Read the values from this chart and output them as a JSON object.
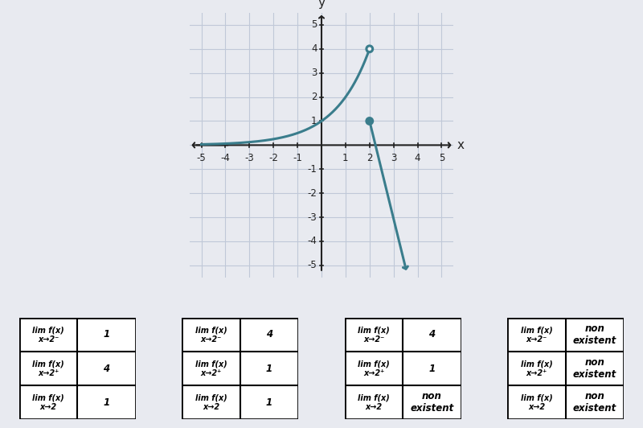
{
  "bg_color": "#e8eaf0",
  "graph_bg": "#f0f2f5",
  "curve_color": "#3a7d8c",
  "grid_color": "#c0c8d8",
  "axis_color": "#222222",
  "xlim": [
    -5.5,
    5.5
  ],
  "ylim": [
    -5.5,
    5.5
  ],
  "xticks": [
    -5,
    -4,
    -3,
    -2,
    -1,
    0,
    1,
    2,
    3,
    4,
    5
  ],
  "yticks": [
    -5,
    -4,
    -3,
    -2,
    -1,
    0,
    1,
    2,
    3,
    4,
    5
  ],
  "open_circle": [
    2,
    4
  ],
  "closed_circle": [
    2,
    1
  ],
  "tables": [
    {
      "rows": [
        [
          "lim f(x)\nx→2⁻",
          "1"
        ],
        [
          "lim f(x)\nx→2⁺",
          "4"
        ],
        [
          "lim f(x)\nx→2",
          "1"
        ]
      ]
    },
    {
      "rows": [
        [
          "lim f(x)\nx→2⁻",
          "4"
        ],
        [
          "lim f(x)\nx→2⁺",
          "1"
        ],
        [
          "lim f(x)\nx→2",
          "1"
        ]
      ]
    },
    {
      "rows": [
        [
          "lim f(x)\nx→2⁻",
          "4"
        ],
        [
          "lim f(x)\nx→2⁺",
          "1"
        ],
        [
          "lim f(x)\nx→2",
          "non\nexistent"
        ]
      ]
    },
    {
      "rows": [
        [
          "lim f(x)\nx→2⁻",
          "non\nexistent"
        ],
        [
          "lim f(x)\nx→2⁺",
          "non\nexistent"
        ],
        [
          "lim f(x)\nx→2",
          "non\nexistent"
        ]
      ]
    }
  ]
}
